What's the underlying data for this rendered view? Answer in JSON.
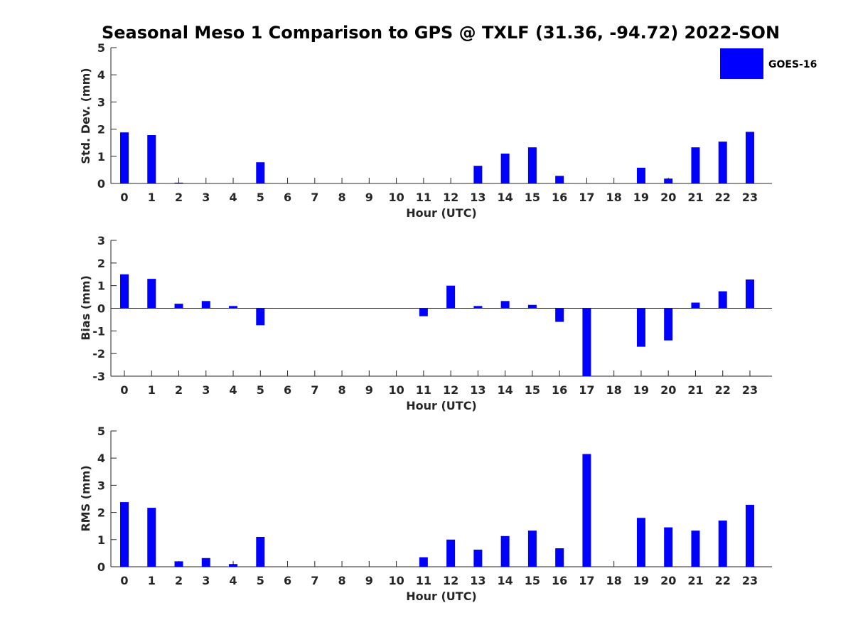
{
  "chart_data": {
    "type": "bar",
    "title": "Seasonal Meso 1 Comparison to GPS @ TXLF (31.36, -94.72) 2022-SON",
    "legend": {
      "label": "GOES-16",
      "position": "top-right",
      "color": "#0000ff"
    },
    "bar_color": "#0000ff",
    "categories": [
      "0",
      "1",
      "2",
      "3",
      "4",
      "5",
      "6",
      "7",
      "8",
      "9",
      "10",
      "11",
      "12",
      "13",
      "14",
      "15",
      "16",
      "17",
      "18",
      "19",
      "20",
      "21",
      "22",
      "23"
    ],
    "panels": [
      {
        "ylabel": "Std. Dev. (mm)",
        "xlabel": "Hour (UTC)",
        "ylim": [
          0,
          5
        ],
        "yticks": [
          0,
          1,
          2,
          3,
          4,
          5
        ],
        "zero_line": false,
        "series": [
          {
            "name": "GOES-16",
            "values": [
              1.88,
              1.78,
              0.03,
              null,
              null,
              0.78,
              null,
              null,
              null,
              null,
              null,
              null,
              null,
              0.65,
              1.1,
              1.33,
              0.28,
              null,
              null,
              0.58,
              0.18,
              1.33,
              1.54,
              1.9
            ]
          }
        ]
      },
      {
        "ylabel": "Bias (mm)",
        "xlabel": "Hour (UTC)",
        "ylim": [
          -3,
          3
        ],
        "yticks": [
          -3,
          -2,
          -1,
          0,
          1,
          2,
          3
        ],
        "zero_line": true,
        "series": [
          {
            "name": "GOES-16",
            "values": [
              1.5,
              1.3,
              0.2,
              0.32,
              0.1,
              -0.75,
              null,
              null,
              null,
              null,
              null,
              -0.35,
              1.0,
              0.1,
              0.32,
              0.15,
              -0.6,
              -3.0,
              null,
              -1.7,
              -1.42,
              0.25,
              0.75,
              1.27
            ]
          }
        ]
      },
      {
        "ylabel": "RMS (mm)",
        "xlabel": "Hour (UTC)",
        "ylim": [
          0,
          5
        ],
        "yticks": [
          0,
          1,
          2,
          3,
          4,
          5
        ],
        "zero_line": false,
        "series": [
          {
            "name": "GOES-16",
            "values": [
              2.38,
              2.17,
              0.2,
              0.32,
              0.1,
              1.1,
              null,
              null,
              null,
              null,
              null,
              0.35,
              1.0,
              0.63,
              1.13,
              1.33,
              0.68,
              4.15,
              null,
              1.8,
              1.45,
              1.33,
              1.7,
              2.28
            ]
          }
        ]
      }
    ]
  }
}
